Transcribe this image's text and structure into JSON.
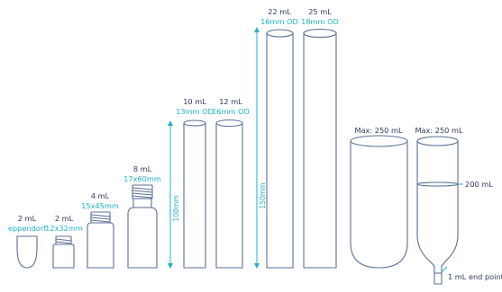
{
  "vessels": [
    {
      "name": "2 mL",
      "spec": "eppendorf"
    },
    {
      "name": "2 mL",
      "spec": "12x32mm"
    },
    {
      "name": "4 mL",
      "spec": "15x45mm"
    },
    {
      "name": "8 mL",
      "spec": "17x60mm"
    },
    {
      "name": "10 mL",
      "spec": "13mm OD"
    },
    {
      "name": "12 mL",
      "spec": "16mm OD"
    },
    {
      "name": "22 mL",
      "spec": "16mm OD"
    },
    {
      "name": "25 mL",
      "spec": "18mm OD"
    },
    {
      "name": "Max: 250 mL",
      "spec": ""
    },
    {
      "name": "Max: 250 mL",
      "spec": ""
    }
  ],
  "dimensions": {
    "short": "100mm",
    "tall": "150mm"
  },
  "annotations": {
    "fill_level": "200 mL",
    "end_point": "1 mL end point"
  },
  "colors": {
    "outline": "#5b6f99",
    "accent": "#1fb3c6",
    "text": "#2d3a5a"
  }
}
